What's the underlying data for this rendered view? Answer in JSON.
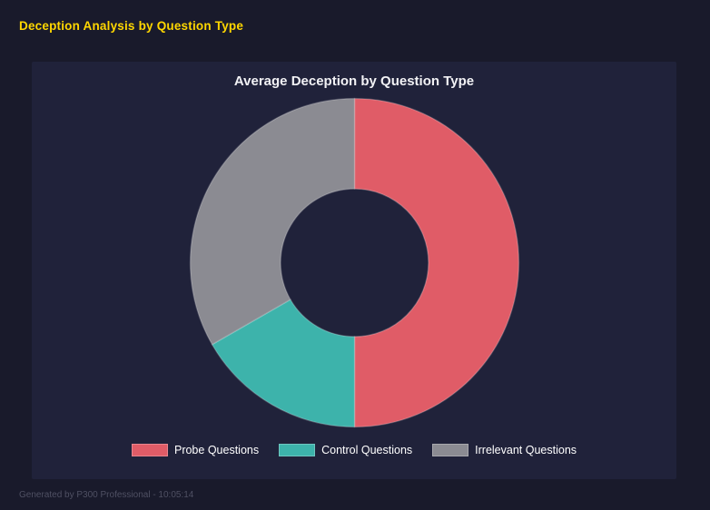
{
  "page": {
    "title": "Deception Analysis by Question Type",
    "footer": "Generated by P300 Professional - 10:05:14"
  },
  "colors": {
    "window_background": "#191a2b",
    "panel_background": "#20223a",
    "page_title_yellow": "#ffd700",
    "chart_title_white": "#f2f2f5",
    "probe_red": "#e05c67",
    "control_teal": "#3db3ab",
    "irrelevant_gray": "#8b8b92"
  },
  "chart_data": {
    "type": "pie",
    "subtype": "donut",
    "title": "Average Deception by Question Type",
    "start_angle_deg": 0,
    "direction": "clockwise",
    "inner_radius_ratio": 0.45,
    "legend_position": "bottom",
    "slices": [
      {
        "label": "Probe Questions",
        "value": 50.0,
        "share_percent": 50.0,
        "color": "#e05c67"
      },
      {
        "label": "Control Questions",
        "value": 16.7,
        "share_percent": 16.7,
        "color": "#3db3ab"
      },
      {
        "label": "Irrelevant Questions",
        "value": 33.3,
        "share_percent": 33.3,
        "color": "#8b8b92"
      }
    ]
  }
}
